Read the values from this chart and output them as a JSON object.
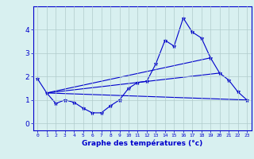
{
  "x_values": [
    0,
    1,
    2,
    3,
    4,
    5,
    6,
    7,
    8,
    9,
    10,
    11,
    12,
    13,
    14,
    15,
    16,
    17,
    18,
    19,
    20,
    21,
    22,
    23
  ],
  "line1": [
    1.9,
    1.3,
    0.85,
    1.0,
    0.9,
    0.65,
    0.45,
    0.45,
    0.75,
    1.0,
    1.5,
    1.75,
    1.8,
    2.55,
    3.55,
    3.3,
    4.5,
    3.9,
    3.65,
    2.8,
    2.15,
    1.85,
    1.35,
    1.0
  ],
  "line2_x": [
    1,
    23
  ],
  "line2_y": [
    1.3,
    1.0
  ],
  "line3_x": [
    1,
    19
  ],
  "line3_y": [
    1.3,
    2.8
  ],
  "line4_x": [
    1,
    20
  ],
  "line4_y": [
    1.3,
    2.15
  ],
  "line_color": "#0000cc",
  "bg_color": "#d8f0f0",
  "grid_color": "#b0cccc",
  "xlabel": "Graphe des températures (°c)",
  "xlabel_color": "#0000cc",
  "ylim": [
    -0.3,
    5.0
  ],
  "xlim": [
    -0.5,
    23.5
  ],
  "yticks": [
    0,
    1,
    2,
    3,
    4
  ],
  "xtick_labels": [
    "0",
    "1",
    "2",
    "3",
    "4",
    "5",
    "6",
    "7",
    "8",
    "9",
    "10",
    "11",
    "12",
    "13",
    "14",
    "15",
    "16",
    "17",
    "18",
    "19",
    "20",
    "21",
    "22",
    "23"
  ]
}
